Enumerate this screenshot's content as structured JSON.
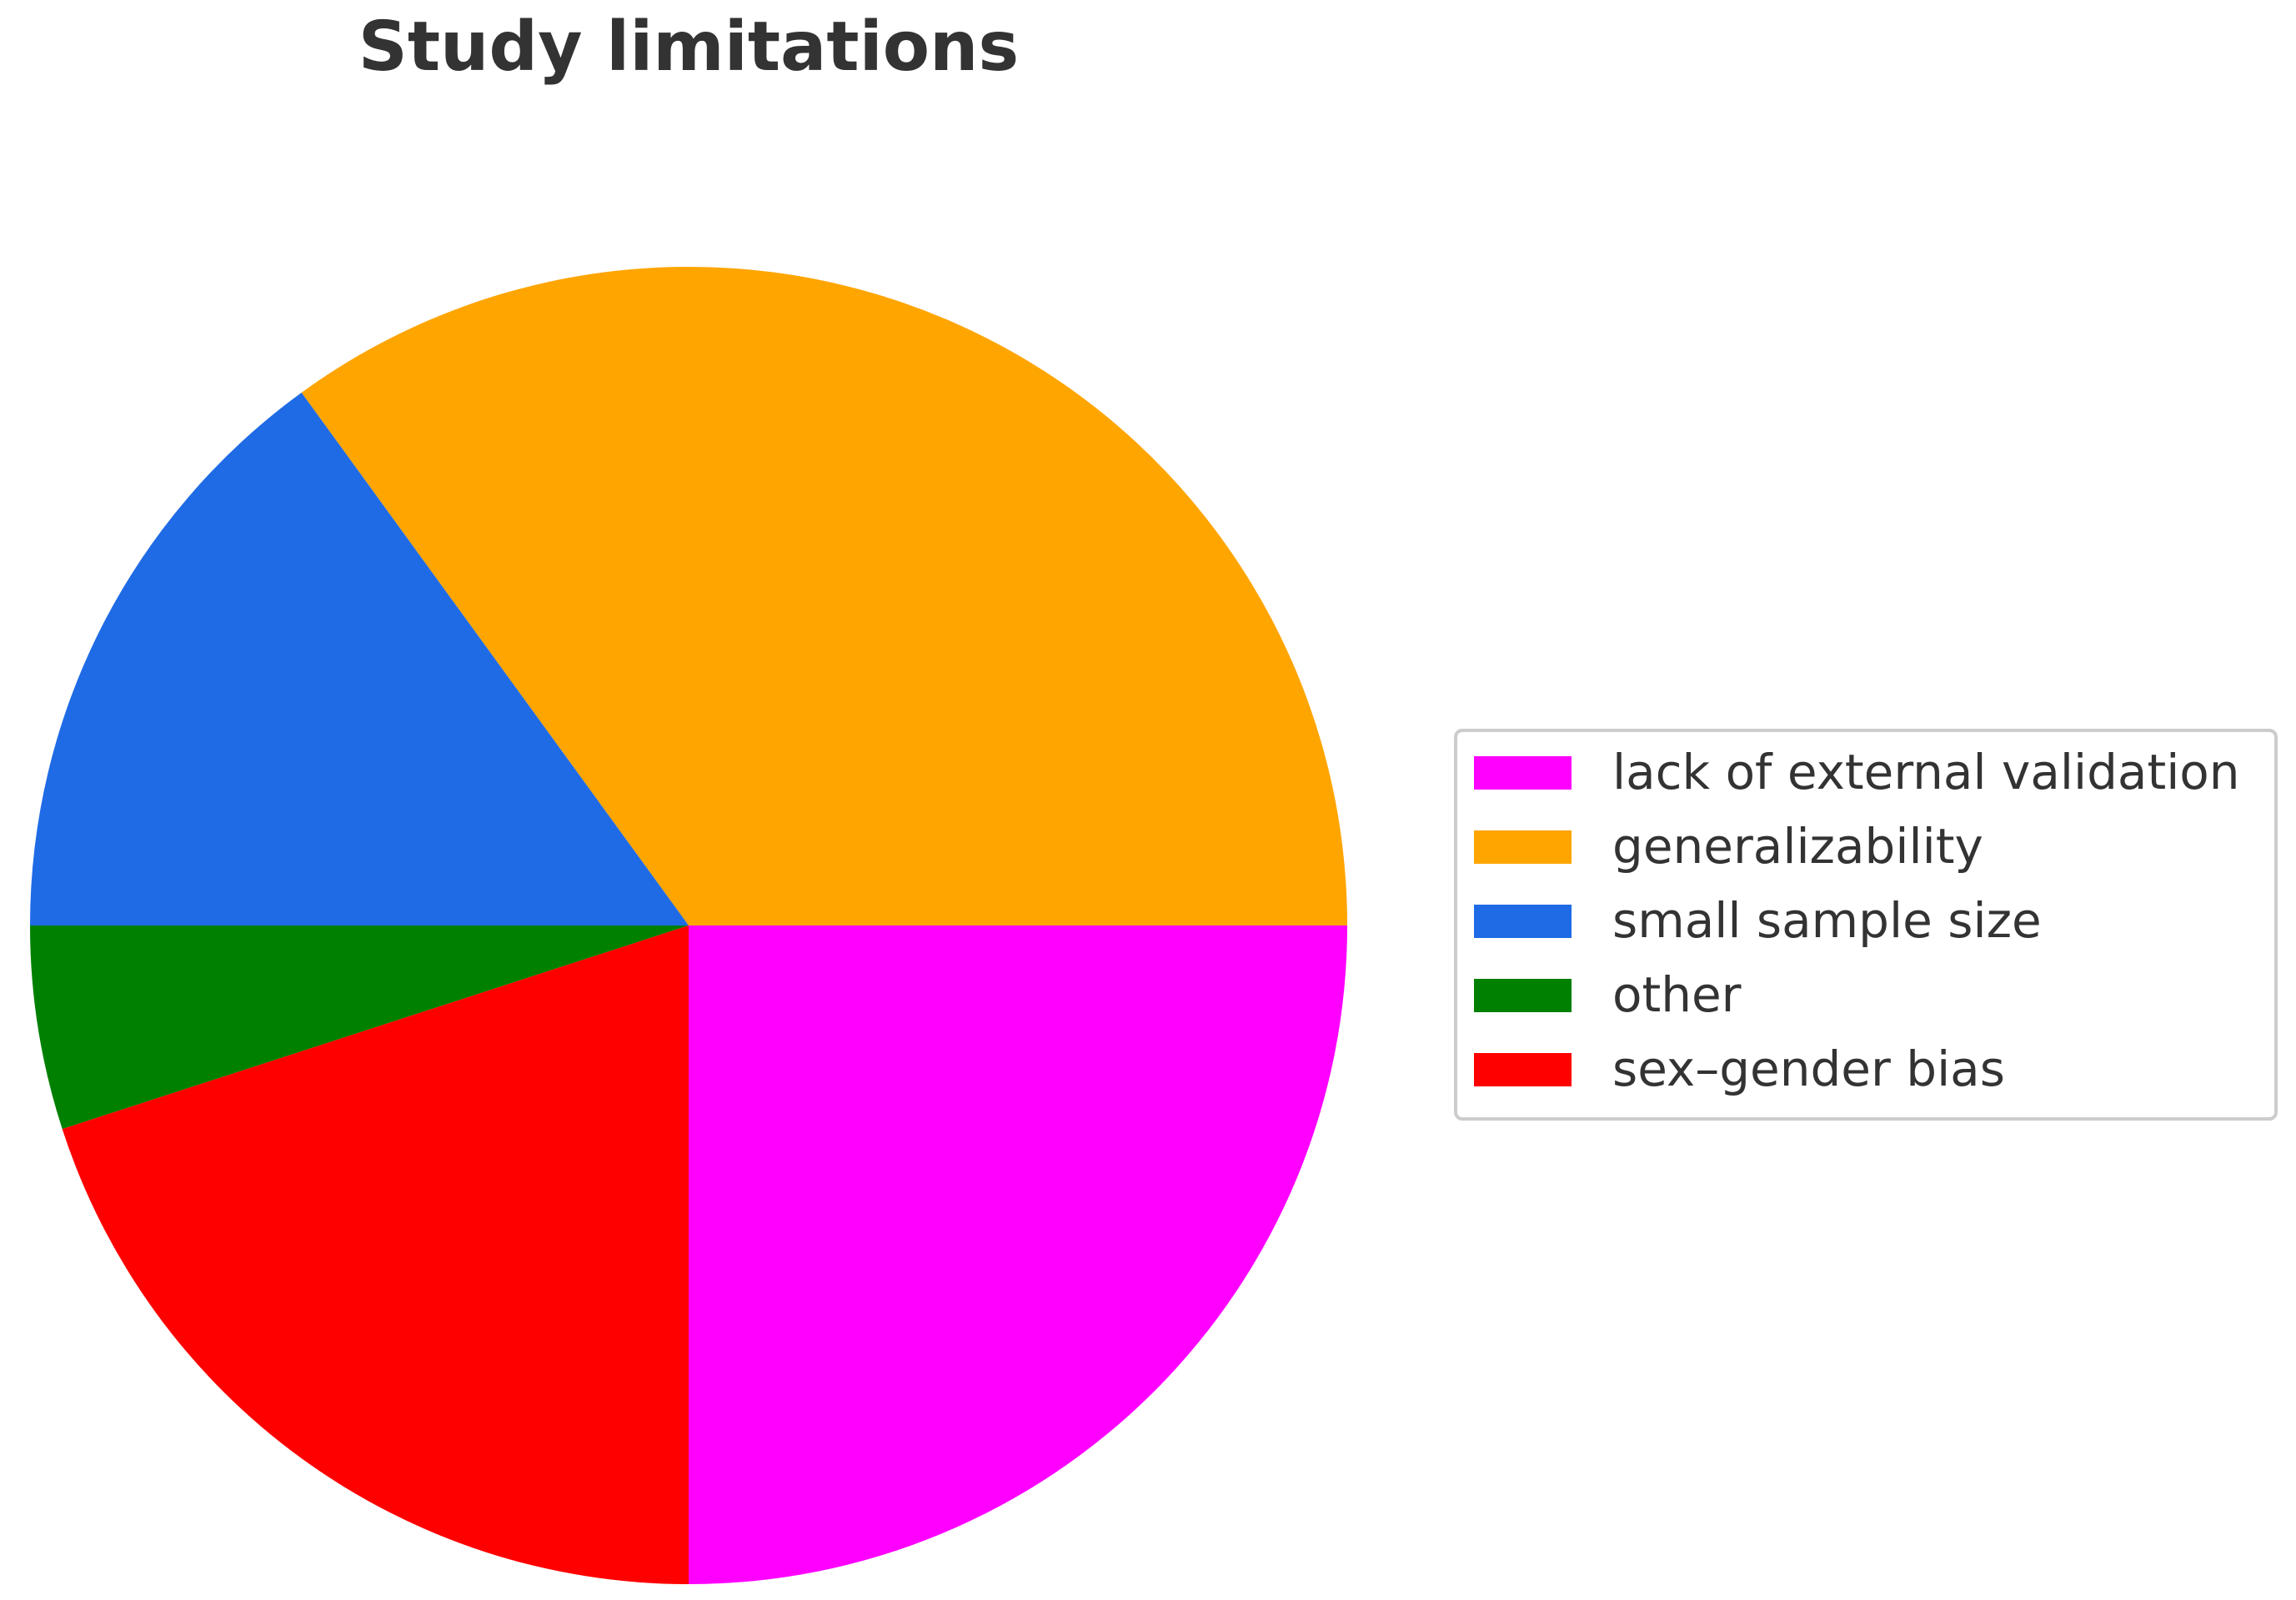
{
  "chart_data": {
    "type": "pie",
    "title": "Study limitations",
    "categories": [
      "lack of external validation",
      "generalizability",
      "small sample size",
      "other",
      "sex–gender bias"
    ],
    "values": [
      25,
      35,
      15,
      5,
      20
    ],
    "colors": [
      "#ff00ff",
      "#ffa500",
      "#1f6be6",
      "#008000",
      "#ff0000"
    ],
    "start_angle_deg": -90,
    "direction": "counterclockwise",
    "legend_position": "right"
  }
}
